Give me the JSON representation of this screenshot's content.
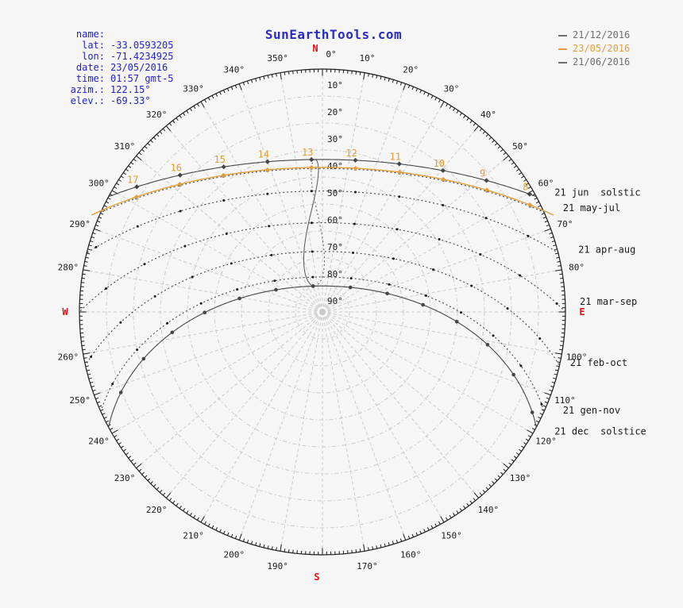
{
  "header": {
    "title": "SunEarthTools.com",
    "legend": [
      {
        "label": "21/12/2016",
        "color": "#6e6e6e"
      },
      {
        "label": "23/05/2016",
        "color": "#e2a03a"
      },
      {
        "label": "21/06/2016",
        "color": "#6e6e6e"
      }
    ]
  },
  "info_panel": {
    "rows": [
      {
        "key": "name:",
        "value": ""
      },
      {
        "key": "lat:",
        "value": "-33.0593205"
      },
      {
        "key": "lon:",
        "value": "-71.4234925"
      },
      {
        "key": "date:",
        "value": "23/05/2016"
      },
      {
        "key": "time:",
        "value": "01:57 gmt-5"
      },
      {
        "key": "azim.:",
        "value": "122.15°"
      },
      {
        "key": "elev.:",
        "value": "-69.33°"
      }
    ]
  },
  "chart_data": {
    "type": "sun-path-polar",
    "projection": "polar-equidistant: center = zenith (elev 90°), rim = horizon (elev 0°), azimuth 0°=N clockwise",
    "latitude": -33.0593205,
    "longitude": -71.4234925,
    "azimuth_grid_step_deg": 10,
    "azimuth_tick_step_deg": 1,
    "azimuth_label_step_deg": 10,
    "elevation_ring_step_deg": 10,
    "elevation_label_step_deg": 10,
    "elevation_range": [
      0,
      90
    ],
    "cardinals": {
      "north": "N",
      "east": "E",
      "south": "S",
      "west": "W"
    },
    "hour_labels": [
      8,
      9,
      10,
      11,
      12,
      13,
      14,
      15,
      16,
      17
    ],
    "solar_noon_clock": 12.75,
    "selected_date_curve": {
      "label": "23/05/2016",
      "declination_deg": 20.5,
      "style": "solid",
      "marker": "diamond",
      "color": "#e2a03a"
    },
    "date_curves": [
      {
        "label": "21 jun  solstic",
        "declination_deg": 23.44,
        "style": "solid",
        "marker": "diamond",
        "label_offset": [
          0,
          11
        ]
      },
      {
        "label": "21 may-jul",
        "declination_deg": 20.1,
        "style": "dotted",
        "marker": "tick",
        "label_offset": [
          0,
          9
        ]
      },
      {
        "label": "21 apr-aug",
        "declination_deg": 11.75,
        "style": "dotted",
        "marker": "tick",
        "label_offset": [
          0,
          6
        ]
      },
      {
        "label": "21 mar-sep",
        "declination_deg": 0.0,
        "style": "dotted",
        "marker": "tick",
        "label_offset": [
          -8,
          -9
        ]
      },
      {
        "label": "21 feb-oct",
        "declination_deg": -10.65,
        "style": "dotted",
        "marker": "tick",
        "label_offset": [
          -12,
          -5
        ]
      },
      {
        "label": "21 gen-nov",
        "declination_deg": -20.1,
        "style": "dotted",
        "marker": "tick",
        "label_offset": [
          0,
          -8
        ]
      },
      {
        "label": "21 dec  solstice",
        "declination_deg": -23.44,
        "style": "solid",
        "marker": "dot",
        "label_offset": [
          0,
          -3
        ]
      }
    ],
    "analemma": {
      "clock_hour": 13,
      "reference_day_of_year": 143
    },
    "colors": {
      "grid": "#c9c9c9",
      "axis": "#1a1a1a",
      "text": "#1a1a1a",
      "curve_dark": "#454545",
      "cardinal": "#dd1111",
      "hour_label": "#dd9c2e"
    }
  }
}
